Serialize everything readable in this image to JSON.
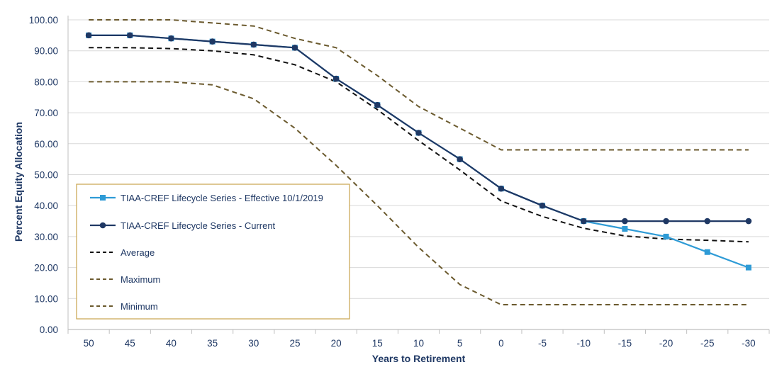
{
  "chart_data": {
    "type": "line",
    "xlabel": "Years to Retirement",
    "ylabel": "Percent Equity Allocation",
    "x": [
      "50",
      "45",
      "40",
      "35",
      "30",
      "25",
      "20",
      "15",
      "10",
      "5",
      "0",
      "-5",
      "-10",
      "-15",
      "-20",
      "-25",
      "-30"
    ],
    "y_ticks": [
      "0.00",
      "10.00",
      "20.00",
      "30.00",
      "40.00",
      "50.00",
      "60.00",
      "70.00",
      "80.00",
      "90.00",
      "100.00"
    ],
    "ylim": [
      0,
      100
    ],
    "grid": "horizontal",
    "legend_position": "bottom-left",
    "series": [
      {
        "name": "TIAA-CREF Lifecycle Series - Effective 10/1/2019",
        "color": "#2e9bd6",
        "style": "solid",
        "marker": "square",
        "values": [
          95,
          95,
          94,
          93,
          92,
          91,
          81,
          72.5,
          63.5,
          55,
          45.5,
          40,
          35,
          32.5,
          30,
          25,
          20
        ]
      },
      {
        "name": "TIAA-CREF Lifecycle Series - Current",
        "color": "#1f3864",
        "style": "solid",
        "marker": "circle",
        "values": [
          95,
          95,
          94,
          93,
          92,
          91,
          81,
          72.5,
          63.5,
          55,
          45.5,
          40,
          35,
          35,
          35,
          35,
          35
        ]
      },
      {
        "name": "Average",
        "color": "#111111",
        "style": "dashed",
        "marker": "none",
        "values": [
          91,
          91,
          90.7,
          90,
          88.7,
          85.5,
          80,
          71,
          61,
          51.5,
          41.5,
          36.5,
          32.7,
          30.2,
          29.2,
          28.8,
          28.3
        ]
      },
      {
        "name": "Maximum",
        "color": "#6b5a2e",
        "style": "dashed",
        "marker": "none",
        "values": [
          100,
          100,
          100,
          99,
          98,
          94,
          91,
          82,
          72,
          65,
          58,
          58,
          58,
          58,
          58,
          58,
          58
        ]
      },
      {
        "name": "Minimum",
        "color": "#6b5a2e",
        "style": "dashed",
        "marker": "none",
        "values": [
          80,
          80,
          80,
          79,
          74.5,
          65,
          53,
          40,
          26.5,
          14.5,
          8,
          8,
          8,
          8,
          8,
          8,
          8
        ]
      }
    ]
  }
}
